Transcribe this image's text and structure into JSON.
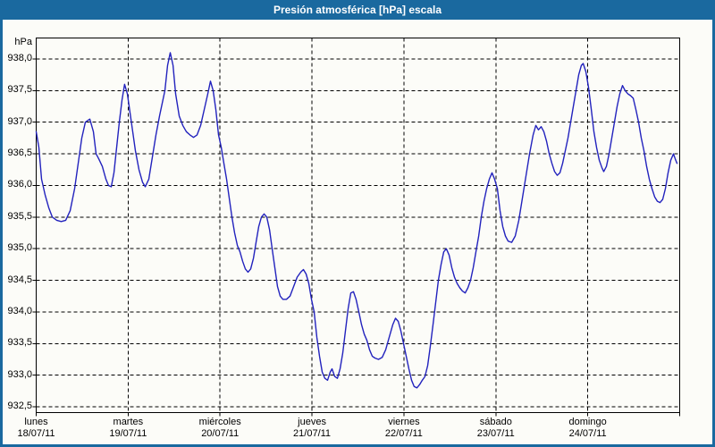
{
  "window": {
    "title": "Presión atmosférica [hPa] escala",
    "title_bar_color": "#1a699f",
    "border_color": "#1a699f",
    "panel_background": "#fcfcf8"
  },
  "chart_data": {
    "type": "line",
    "title": "Presión atmosférica [hPa] escala",
    "ylabel": "hPa",
    "ylim": [
      932.5,
      938.0
    ],
    "ytick_step": 0.5,
    "yticks": [
      "938,0",
      "937,5",
      "937,0",
      "936,5",
      "936,0",
      "935,5",
      "935,0",
      "934,5",
      "934,0",
      "933,5",
      "933,0",
      "932,5"
    ],
    "xlim_days": [
      0,
      7
    ],
    "x_days": [
      {
        "name": "lunes",
        "date": "18/07/11"
      },
      {
        "name": "martes",
        "date": "19/07/11"
      },
      {
        "name": "miércoles",
        "date": "20/07/11"
      },
      {
        "name": "jueves",
        "date": "21/07/11"
      },
      {
        "name": "viernes",
        "date": "22/07/11"
      },
      {
        "name": "sábado",
        "date": "23/07/11"
      },
      {
        "name": "domingo",
        "date": "24/07/11"
      }
    ],
    "grid": "dashed",
    "legend": "none",
    "line_color": "#2222bd",
    "grid_color": "#000000",
    "series": [
      {
        "name": "Presión atmosférica",
        "unit": "hPa",
        "points": [
          [
            0,
            936.85
          ],
          [
            0.029,
            936.6
          ],
          [
            0.058,
            936.1
          ],
          [
            0.097,
            935.85
          ],
          [
            0.136,
            935.65
          ],
          [
            0.175,
            935.5
          ],
          [
            0.224,
            935.45
          ],
          [
            0.272,
            935.43
          ],
          [
            0.321,
            935.45
          ],
          [
            0.369,
            935.6
          ],
          [
            0.418,
            935.95
          ],
          [
            0.457,
            936.35
          ],
          [
            0.496,
            936.75
          ],
          [
            0.535,
            937
          ],
          [
            0.583,
            937.05
          ],
          [
            0.622,
            936.85
          ],
          [
            0.651,
            936.5
          ],
          [
            0.681,
            936.42
          ],
          [
            0.719,
            936.3
          ],
          [
            0.758,
            936.1
          ],
          [
            0.787,
            936
          ],
          [
            0.817,
            935.98
          ],
          [
            0.846,
            936.2
          ],
          [
            0.875,
            936.6
          ],
          [
            0.904,
            937
          ],
          [
            0.933,
            937.35
          ],
          [
            0.962,
            937.6
          ],
          [
            0.992,
            937.45
          ],
          [
            1.021,
            937.15
          ],
          [
            1.05,
            936.85
          ],
          [
            1.079,
            936.55
          ],
          [
            1.118,
            936.25
          ],
          [
            1.157,
            936.05
          ],
          [
            1.186,
            935.98
          ],
          [
            1.225,
            936.1
          ],
          [
            1.264,
            936.45
          ],
          [
            1.303,
            936.8
          ],
          [
            1.342,
            937.1
          ],
          [
            1.371,
            937.3
          ],
          [
            1.4,
            937.5
          ],
          [
            1.429,
            937.9
          ],
          [
            1.458,
            938.1
          ],
          [
            1.488,
            937.9
          ],
          [
            1.517,
            937.45
          ],
          [
            1.556,
            937.1
          ],
          [
            1.594,
            936.95
          ],
          [
            1.633,
            936.85
          ],
          [
            1.672,
            936.8
          ],
          [
            1.711,
            936.76
          ],
          [
            1.75,
            936.8
          ],
          [
            1.789,
            936.95
          ],
          [
            1.828,
            937.2
          ],
          [
            1.867,
            937.45
          ],
          [
            1.896,
            937.65
          ],
          [
            1.925,
            937.5
          ],
          [
            1.954,
            937.2
          ],
          [
            1.983,
            936.8
          ],
          [
            2.013,
            936.6
          ],
          [
            2.042,
            936.35
          ],
          [
            2.071,
            936.1
          ],
          [
            2.1,
            935.8
          ],
          [
            2.129,
            935.5
          ],
          [
            2.158,
            935.25
          ],
          [
            2.188,
            935.05
          ],
          [
            2.217,
            934.95
          ],
          [
            2.246,
            934.8
          ],
          [
            2.275,
            934.68
          ],
          [
            2.304,
            934.63
          ],
          [
            2.333,
            934.68
          ],
          [
            2.363,
            934.85
          ],
          [
            2.392,
            935.1
          ],
          [
            2.421,
            935.35
          ],
          [
            2.45,
            935.5
          ],
          [
            2.479,
            935.55
          ],
          [
            2.508,
            935.5
          ],
          [
            2.538,
            935.3
          ],
          [
            2.567,
            935
          ],
          [
            2.596,
            934.7
          ],
          [
            2.625,
            934.4
          ],
          [
            2.654,
            934.25
          ],
          [
            2.683,
            934.2
          ],
          [
            2.722,
            934.2
          ],
          [
            2.761,
            934.25
          ],
          [
            2.8,
            934.4
          ],
          [
            2.839,
            934.55
          ],
          [
            2.878,
            934.63
          ],
          [
            2.907,
            934.67
          ],
          [
            2.936,
            934.6
          ],
          [
            2.965,
            934.45
          ],
          [
            2.994,
            934.2
          ],
          [
            3.024,
            934
          ],
          [
            3.053,
            933.6
          ],
          [
            3.082,
            933.3
          ],
          [
            3.111,
            933.05
          ],
          [
            3.14,
            932.95
          ],
          [
            3.169,
            932.92
          ],
          [
            3.199,
            933.05
          ],
          [
            3.218,
            933.1
          ],
          [
            3.247,
            932.98
          ],
          [
            3.276,
            932.95
          ],
          [
            3.306,
            933.1
          ],
          [
            3.335,
            933.35
          ],
          [
            3.364,
            933.7
          ],
          [
            3.393,
            934.05
          ],
          [
            3.422,
            934.3
          ],
          [
            3.451,
            934.32
          ],
          [
            3.48,
            934.2
          ],
          [
            3.51,
            934
          ],
          [
            3.539,
            933.8
          ],
          [
            3.568,
            933.65
          ],
          [
            3.597,
            933.55
          ],
          [
            3.626,
            933.4
          ],
          [
            3.656,
            933.3
          ],
          [
            3.685,
            933.27
          ],
          [
            3.724,
            933.25
          ],
          [
            3.763,
            933.28
          ],
          [
            3.801,
            933.4
          ],
          [
            3.84,
            933.6
          ],
          [
            3.879,
            933.8
          ],
          [
            3.908,
            933.9
          ],
          [
            3.938,
            933.85
          ],
          [
            3.967,
            933.7
          ],
          [
            3.996,
            933.5
          ],
          [
            4.025,
            933.3
          ],
          [
            4.054,
            933.1
          ],
          [
            4.083,
            932.92
          ],
          [
            4.112,
            932.82
          ],
          [
            4.142,
            932.8
          ],
          [
            4.171,
            932.85
          ],
          [
            4.2,
            932.92
          ],
          [
            4.229,
            932.98
          ],
          [
            4.258,
            933.15
          ],
          [
            4.287,
            933.45
          ],
          [
            4.317,
            933.8
          ],
          [
            4.346,
            934.15
          ],
          [
            4.375,
            934.5
          ],
          [
            4.404,
            934.75
          ],
          [
            4.433,
            934.95
          ],
          [
            4.462,
            935
          ],
          [
            4.492,
            934.9
          ],
          [
            4.521,
            934.7
          ],
          [
            4.55,
            934.55
          ],
          [
            4.579,
            934.45
          ],
          [
            4.608,
            934.38
          ],
          [
            4.637,
            934.33
          ],
          [
            4.667,
            934.3
          ],
          [
            4.696,
            934.38
          ],
          [
            4.725,
            934.5
          ],
          [
            4.754,
            934.7
          ],
          [
            4.783,
            934.95
          ],
          [
            4.813,
            935.2
          ],
          [
            4.842,
            935.5
          ],
          [
            4.871,
            935.75
          ],
          [
            4.9,
            935.95
          ],
          [
            4.929,
            936.1
          ],
          [
            4.958,
            936.2
          ],
          [
            4.987,
            936.1
          ],
          [
            5.017,
            935.95
          ],
          [
            5.046,
            935.6
          ],
          [
            5.075,
            935.35
          ],
          [
            5.104,
            935.2
          ],
          [
            5.133,
            935.12
          ],
          [
            5.172,
            935.1
          ],
          [
            5.211,
            935.2
          ],
          [
            5.25,
            935.45
          ],
          [
            5.289,
            935.8
          ],
          [
            5.328,
            936.15
          ],
          [
            5.367,
            936.5
          ],
          [
            5.406,
            936.8
          ],
          [
            5.435,
            936.95
          ],
          [
            5.464,
            936.88
          ],
          [
            5.493,
            936.93
          ],
          [
            5.522,
            936.85
          ],
          [
            5.551,
            936.7
          ],
          [
            5.581,
            936.5
          ],
          [
            5.61,
            936.35
          ],
          [
            5.639,
            936.22
          ],
          [
            5.668,
            936.16
          ],
          [
            5.697,
            936.2
          ],
          [
            5.726,
            936.35
          ],
          [
            5.756,
            936.55
          ],
          [
            5.785,
            936.75
          ],
          [
            5.814,
            937
          ],
          [
            5.843,
            937.25
          ],
          [
            5.872,
            937.5
          ],
          [
            5.901,
            937.75
          ],
          [
            5.931,
            937.9
          ],
          [
            5.95,
            937.93
          ],
          [
            5.979,
            937.8
          ],
          [
            6.008,
            937.55
          ],
          [
            6.038,
            937.2
          ],
          [
            6.067,
            936.85
          ],
          [
            6.096,
            936.6
          ],
          [
            6.125,
            936.4
          ],
          [
            6.154,
            936.28
          ],
          [
            6.174,
            936.22
          ],
          [
            6.203,
            936.3
          ],
          [
            6.232,
            936.5
          ],
          [
            6.261,
            936.75
          ],
          [
            6.29,
            937
          ],
          [
            6.319,
            937.25
          ],
          [
            6.349,
            937.45
          ],
          [
            6.378,
            937.58
          ],
          [
            6.407,
            937.5
          ],
          [
            6.436,
            937.45
          ],
          [
            6.465,
            937.42
          ],
          [
            6.494,
            937.38
          ],
          [
            6.524,
            937.2
          ],
          [
            6.553,
            937
          ],
          [
            6.582,
            936.75
          ],
          [
            6.611,
            936.55
          ],
          [
            6.64,
            936.3
          ],
          [
            6.669,
            936.1
          ],
          [
            6.699,
            935.95
          ],
          [
            6.728,
            935.82
          ],
          [
            6.757,
            935.75
          ],
          [
            6.786,
            935.73
          ],
          [
            6.815,
            935.78
          ],
          [
            6.844,
            935.95
          ],
          [
            6.874,
            936.2
          ],
          [
            6.903,
            936.4
          ],
          [
            6.932,
            936.5
          ],
          [
            6.951,
            936.42
          ],
          [
            6.971,
            936.35
          ]
        ]
      }
    ]
  }
}
